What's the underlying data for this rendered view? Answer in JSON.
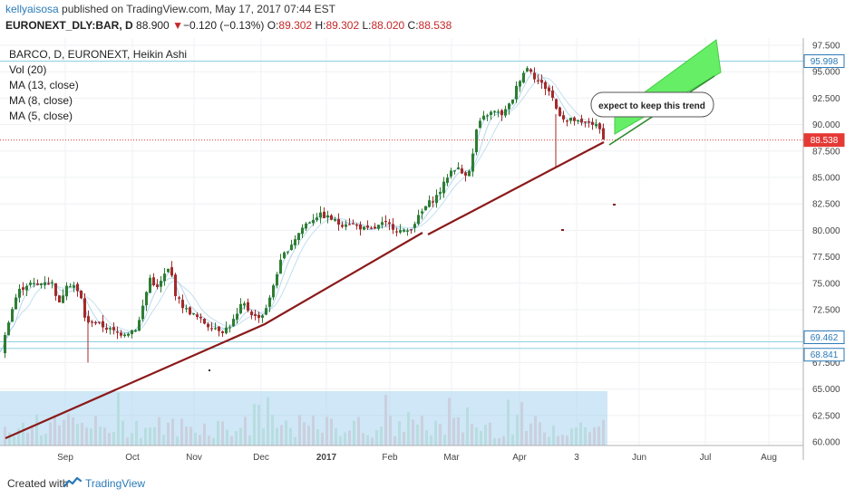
{
  "header": {
    "author": "kellyaisosa",
    "published_text": " published on TradingView.com, May 17, 2017 07:44 EST",
    "symbol": "EURONEXT_DLY:BAR, D",
    "last": "88.900",
    "change_arrow": "▼",
    "change": "−0.120 (−0.13%)",
    "o_label": "O:",
    "o_value": "89.302",
    "h_label": "H:",
    "h_value": "89.302",
    "l_label": "L:",
    "l_value": "88.020",
    "c_label": "C:",
    "c_value": "88.538"
  },
  "legend": {
    "title": "BARCO, D, EURONEXT, Heikin Ashi",
    "vol": "Vol (20)",
    "ma13": "MA (13, close)",
    "ma8": "MA (8, close)",
    "ma5": "MA (5, close)"
  },
  "annotation": {
    "text": "expect to keep this trend"
  },
  "footer": {
    "created_with": "Created with",
    "brand": "TradingView"
  },
  "colors": {
    "up": "#2e7d32",
    "down": "#a52a2a",
    "trendline": "#8b1a1a",
    "channel": "#66ee66",
    "ma": "#9cc9e6",
    "hline": "#8fd0e0",
    "price_label": "#e53935",
    "level_label": "#2a7ab8"
  },
  "chart_data": {
    "type": "candlestick",
    "y_axis": {
      "range": [
        60,
        97.5
      ],
      "ticks": [
        "97.500",
        "95.000",
        "92.500",
        "90.000",
        "87.500",
        "85.000",
        "82.500",
        "80.000",
        "77.500",
        "75.000",
        "72.500",
        "70.000",
        "67.500",
        "65.000",
        "62.500",
        "60.000"
      ]
    },
    "x_axis": {
      "ticks": [
        {
          "label": "Sep",
          "bold": false
        },
        {
          "label": "Oct",
          "bold": false
        },
        {
          "label": "Nov",
          "bold": false
        },
        {
          "label": "Dec",
          "bold": false
        },
        {
          "label": "2017",
          "bold": true
        },
        {
          "label": "Feb",
          "bold": false
        },
        {
          "label": "Mar",
          "bold": false
        },
        {
          "label": "Apr",
          "bold": false
        },
        {
          "label": "3",
          "bold": false
        },
        {
          "label": "Jun",
          "bold": false
        },
        {
          "label": "Jul",
          "bold": false
        },
        {
          "label": "Aug",
          "bold": false
        }
      ]
    },
    "price_path": [
      [
        0,
        68.5
      ],
      [
        8,
        71.5
      ],
      [
        18,
        74.2
      ],
      [
        30,
        75.0
      ],
      [
        40,
        74.8
      ],
      [
        48,
        75.2
      ],
      [
        56,
        75.0
      ],
      [
        64,
        73.0
      ],
      [
        72,
        75.0
      ],
      [
        80,
        74.8
      ],
      [
        88,
        73.5
      ],
      [
        94,
        71.0
      ],
      [
        100,
        71.5
      ],
      [
        110,
        71.0
      ],
      [
        120,
        70.6
      ],
      [
        130,
        70.2
      ],
      [
        140,
        70.4
      ],
      [
        150,
        70.8
      ],
      [
        158,
        73.5
      ],
      [
        164,
        75.5
      ],
      [
        172,
        74.5
      ],
      [
        180,
        75.8
      ],
      [
        186,
        76.5
      ],
      [
        192,
        74.0
      ],
      [
        198,
        73.0
      ],
      [
        204,
        72.5
      ],
      [
        212,
        72.0
      ],
      [
        220,
        71.5
      ],
      [
        228,
        71.0
      ],
      [
        236,
        70.8
      ],
      [
        244,
        70.5
      ],
      [
        252,
        71.0
      ],
      [
        260,
        72.0
      ],
      [
        266,
        73.2
      ],
      [
        272,
        72.5
      ],
      [
        280,
        71.8
      ],
      [
        288,
        72.0
      ],
      [
        296,
        73.5
      ],
      [
        302,
        75.5
      ],
      [
        310,
        77.5
      ],
      [
        318,
        78.5
      ],
      [
        326,
        79.5
      ],
      [
        334,
        80.5
      ],
      [
        342,
        81.0
      ],
      [
        350,
        81.5
      ],
      [
        358,
        81.3
      ],
      [
        366,
        81.0
      ],
      [
        374,
        80.5
      ],
      [
        382,
        80.8
      ],
      [
        390,
        80.5
      ],
      [
        398,
        80.2
      ],
      [
        406,
        80.0
      ],
      [
        414,
        80.3
      ],
      [
        422,
        80.7
      ],
      [
        430,
        80.4
      ],
      [
        438,
        80.0
      ],
      [
        446,
        79.8
      ],
      [
        454,
        80.5
      ],
      [
        462,
        81.5
      ],
      [
        470,
        82.5
      ],
      [
        478,
        83.0
      ],
      [
        486,
        84.0
      ],
      [
        494,
        85.5
      ],
      [
        502,
        86.0
      ],
      [
        510,
        85.2
      ],
      [
        518,
        86.0
      ],
      [
        524,
        89.5
      ],
      [
        530,
        90.5
      ],
      [
        536,
        91.0
      ],
      [
        544,
        91.2
      ],
      [
        552,
        91.0
      ],
      [
        558,
        91.5
      ],
      [
        564,
        92.5
      ],
      [
        570,
        94.0
      ],
      [
        576,
        95.0
      ],
      [
        582,
        95.5
      ],
      [
        588,
        94.5
      ],
      [
        594,
        94.0
      ],
      [
        600,
        93.5
      ],
      [
        606,
        93.0
      ],
      [
        612,
        91.5
      ],
      [
        618,
        90.8
      ],
      [
        624,
        90.3
      ],
      [
        630,
        90.5
      ],
      [
        636,
        90.2
      ],
      [
        642,
        90.0
      ],
      [
        648,
        90.3
      ],
      [
        654,
        90.0
      ],
      [
        660,
        89.5
      ],
      [
        666,
        88.5
      ]
    ],
    "moving_averages": [
      "MA (13, close)",
      "MA (8, close)",
      "MA (5, close)"
    ],
    "horizontal_levels": [
      95.998,
      69.462,
      68.841
    ],
    "last_price": 88.538,
    "level_labels": [
      "95.998",
      "88.538",
      "69.462",
      "68.841"
    ]
  }
}
